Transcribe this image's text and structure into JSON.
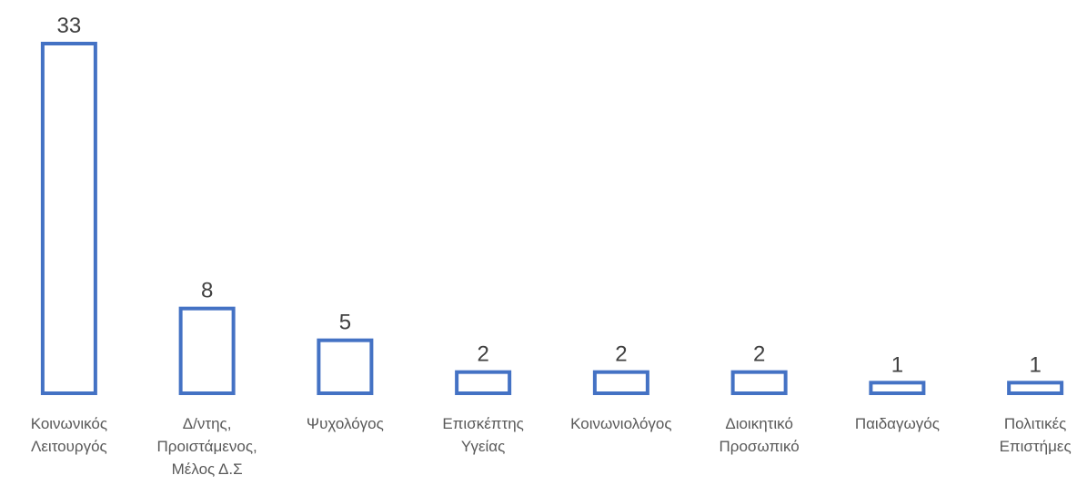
{
  "chart_data": {
    "type": "bar",
    "categories": [
      [
        "Κοινωνικός",
        "Λειτουργός"
      ],
      [
        "Δ/ντης,",
        "Προιστάμενος,",
        "Μέλος Δ.Σ"
      ],
      [
        "Ψυχολόγος"
      ],
      [
        "Επισκέπτης",
        "Υγείας"
      ],
      [
        "Κοινωνιολόγος"
      ],
      [
        "Διοικητικό",
        "Προσωπικό"
      ],
      [
        "Παιδαγωγός"
      ],
      [
        "Πολιτικές",
        "Επιστήμες"
      ]
    ],
    "values": [
      33,
      8,
      5,
      2,
      2,
      2,
      1,
      1
    ],
    "data_labels": [
      "33",
      "8",
      "5",
      "2",
      "2",
      "2",
      "1",
      "1"
    ],
    "title": "",
    "xlabel": "",
    "ylabel": "",
    "ylim": [
      0,
      33
    ],
    "grid": false,
    "legend": "none",
    "colors": {
      "bar_outline": "#4472C4",
      "bar_fill": "#FFFFFF",
      "data_label": "#404040",
      "tick_label": "#595959"
    }
  }
}
